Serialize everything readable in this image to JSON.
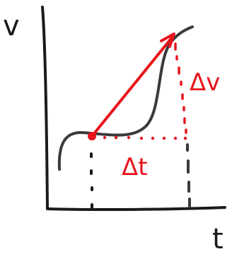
{
  "labels": {
    "y_axis": "v",
    "x_axis": "t",
    "delta_v": "Δv",
    "delta_t": "Δt"
  },
  "colors": {
    "ink": "#1a1a1a",
    "curve": "#3a3a3a",
    "accent": "#e8141c"
  }
}
